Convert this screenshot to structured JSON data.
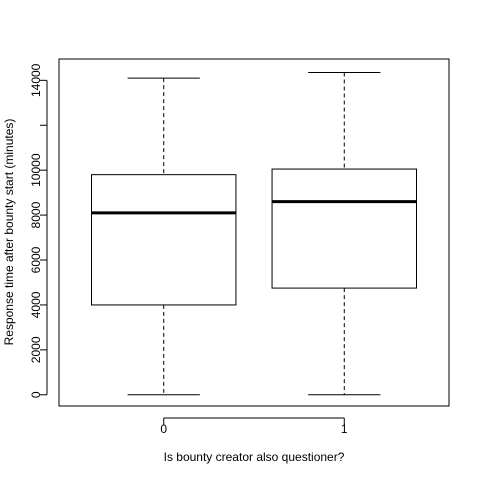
{
  "chart_data": {
    "type": "box",
    "xlabel": "Is bounty creator also questioner?",
    "ylabel": "Response time after bounty start (minutes)",
    "categories": [
      "0",
      "1"
    ],
    "ylim": [
      -500,
      14950
    ],
    "yticks": [
      0,
      2000,
      4000,
      6000,
      8000,
      10000,
      12000,
      14000
    ],
    "ytick_labels": [
      "0",
      "2000",
      "4000",
      "6000",
      "8000",
      "10000",
      "",
      "14000"
    ],
    "boxes": [
      {
        "category": "0",
        "min": 0,
        "q1": 4000,
        "median": 8100,
        "q3": 9800,
        "max": 14100
      },
      {
        "category": "1",
        "min": 0,
        "q1": 4750,
        "median": 8600,
        "q3": 10050,
        "max": 14350
      }
    ],
    "grid": false,
    "legend": "none"
  }
}
